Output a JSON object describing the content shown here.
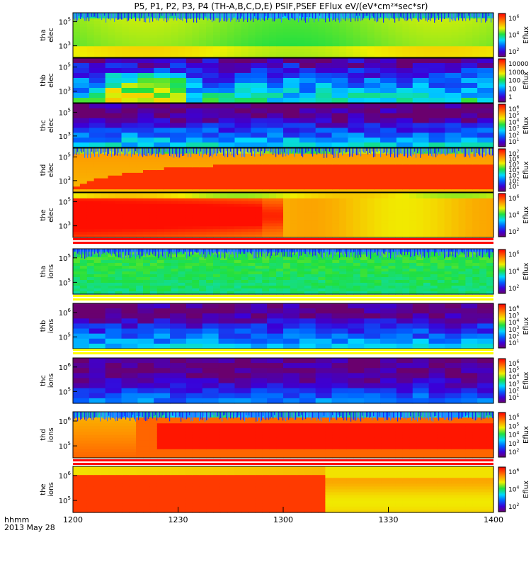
{
  "title": "P5, P1, P2, P3, P4  (TH-A,B,C,D,E) PSIF,PSEF EFlux eV/(eV*cm²*sec*sr)",
  "x_axis": {
    "label_line1": "hhmm",
    "label_line2": "2013 May 28",
    "ticks": [
      "1200",
      "1230",
      "1300",
      "1330",
      "1400"
    ]
  },
  "chart_data": [
    {
      "type": "heatmap",
      "panel": "tha-elec",
      "ylabel": [
        "tha",
        "elec"
      ],
      "ytick_exps": [
        "5",
        "3"
      ],
      "colorbar_label": "Eflux",
      "colorbar_exps": [
        "6",
        "4",
        "2"
      ],
      "colorbar_plain": []
    },
    {
      "type": "heatmap",
      "panel": "thb-elec",
      "ylabel": [
        "thb",
        "elec"
      ],
      "ytick_exps": [
        "5",
        "3"
      ],
      "colorbar_label": "Eflux",
      "colorbar_exps": [],
      "colorbar_plain": [
        "10000",
        "1000",
        "100",
        "10",
        "1"
      ]
    },
    {
      "type": "heatmap",
      "panel": "thc-elec",
      "ylabel": [
        "thc",
        "elec"
      ],
      "ytick_exps": [
        "5",
        "3"
      ],
      "colorbar_label": "Eflux",
      "colorbar_exps": [
        "6",
        "5",
        "4",
        "3",
        "2",
        "1"
      ],
      "colorbar_plain": []
    },
    {
      "type": "heatmap",
      "panel": "thd-elec",
      "ylabel": [
        "thd",
        "elec"
      ],
      "ytick_exps": [
        "5",
        "3"
      ],
      "colorbar_label": "Eflux",
      "colorbar_exps": [
        "7",
        "6",
        "5",
        "4",
        "3",
        "2",
        "1"
      ],
      "colorbar_plain": []
    },
    {
      "type": "heatmap",
      "panel": "the-elec",
      "ylabel": [
        "the",
        "elec"
      ],
      "ytick_exps": [
        "5",
        "3"
      ],
      "colorbar_label": "Eflux",
      "colorbar_exps": [
        "6",
        "4",
        "2"
      ],
      "colorbar_plain": []
    },
    {
      "type": "heatmap",
      "panel": "tha-ions",
      "ylabel": [
        "tha",
        "ions"
      ],
      "ytick_exps": [
        "5",
        "5"
      ],
      "colorbar_label": "Eflux",
      "colorbar_exps": [
        "6",
        "4",
        "2"
      ],
      "colorbar_plain": []
    },
    {
      "type": "heatmap",
      "panel": "thb-ions",
      "ylabel": [
        "thb",
        "ions"
      ],
      "ytick_exps": [
        "6",
        "5"
      ],
      "colorbar_label": "Eflux",
      "colorbar_exps": [
        "6",
        "5",
        "4",
        "3",
        "2",
        "1"
      ],
      "colorbar_plain": []
    },
    {
      "type": "heatmap",
      "panel": "thc-ions",
      "ylabel": [
        "thc",
        "ions"
      ],
      "ytick_exps": [
        "6",
        "5"
      ],
      "colorbar_label": "Eflux",
      "colorbar_exps": [
        "6",
        "5",
        "4",
        "3",
        "2",
        "1"
      ],
      "colorbar_plain": []
    },
    {
      "type": "heatmap",
      "panel": "thd-ions",
      "ylabel": [
        "thd",
        "ions"
      ],
      "ytick_exps": [
        "6",
        "5"
      ],
      "colorbar_label": "Eflux",
      "colorbar_exps": [
        "6",
        "5",
        "4",
        "3",
        "2"
      ],
      "colorbar_plain": []
    },
    {
      "type": "heatmap",
      "panel": "the-ions",
      "ylabel": [
        "the",
        "ions"
      ],
      "ytick_exps": [
        "6",
        "5"
      ],
      "colorbar_label": "Eflux",
      "colorbar_exps": [
        "6",
        "4",
        "2"
      ],
      "colorbar_plain": []
    }
  ]
}
